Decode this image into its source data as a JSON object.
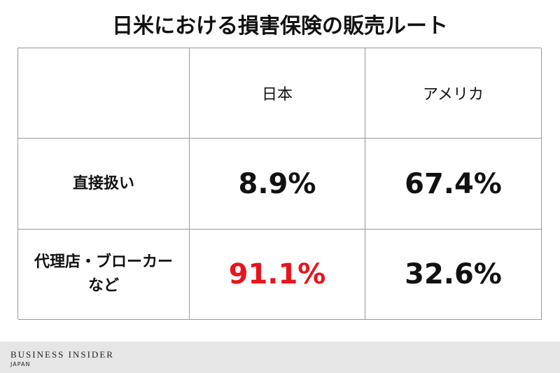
{
  "header": {
    "title": "日米における損害保険の販売ルート"
  },
  "table": {
    "columns": [
      "日本",
      "アメリカ"
    ],
    "rows": [
      {
        "label": "直接扱い",
        "cells": [
          {
            "text": "8.9%",
            "color": "#111111"
          },
          {
            "text": "67.4%",
            "color": "#111111"
          }
        ]
      },
      {
        "label": "代理店・ブローカーなど",
        "cells": [
          {
            "text": "91.1%",
            "color": "#e8141c"
          },
          {
            "text": "32.6%",
            "color": "#111111"
          }
        ]
      }
    ]
  },
  "footer": {
    "brand": "BUSINESS INSIDER",
    "region": "JAPAN"
  }
}
